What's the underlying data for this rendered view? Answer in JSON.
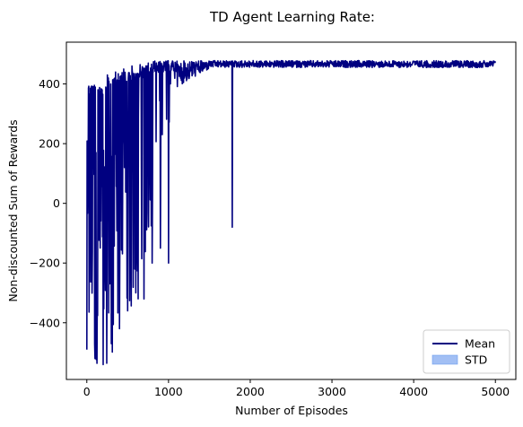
{
  "chart_data": {
    "type": "line",
    "title": "TD Agent Learning Rate:",
    "xlabel": "Number of Episodes",
    "ylabel": "Non-discounted Sum of Rewards",
    "xlim": [
      -250,
      5250
    ],
    "ylim": [
      -590,
      540
    ],
    "xticks": [
      0,
      1000,
      2000,
      3000,
      4000,
      5000
    ],
    "yticks": [
      -400,
      -200,
      0,
      200,
      400
    ],
    "xtick_labels": [
      "0",
      "1000",
      "2000",
      "3000",
      "4000",
      "5000"
    ],
    "ytick_labels": [
      "−400",
      "−200",
      "0",
      "200",
      "400"
    ],
    "grid": false,
    "legend": {
      "placement": "lower-right",
      "entries": [
        "Mean",
        "STD"
      ]
    },
    "colors": {
      "mean": "#000080",
      "std": "#6495ed"
    },
    "series": [
      {
        "name": "Mean",
        "x": [
          0,
          50,
          100,
          150,
          200,
          250,
          300,
          350,
          400,
          450,
          500,
          550,
          600,
          650,
          700,
          750,
          800,
          850,
          900,
          950,
          1000,
          1050,
          1100,
          1200,
          1300,
          1400,
          1500,
          1600,
          1700,
          1760,
          1780,
          1800,
          2000,
          2500,
          3000,
          3500,
          4000,
          4500,
          5000
        ],
        "y": [
          -490,
          390,
          -520,
          370,
          -540,
          430,
          -470,
          440,
          -420,
          450,
          -360,
          460,
          -300,
          465,
          -320,
          470,
          -200,
          470,
          -150,
          472,
          -200,
          475,
          468,
          470,
          472,
          470,
          475,
          473,
          470,
          472,
          -80,
          470,
          472,
          474,
          474,
          475,
          475,
          476,
          476
        ]
      },
      {
        "name": "STD",
        "values": []
      }
    ]
  }
}
